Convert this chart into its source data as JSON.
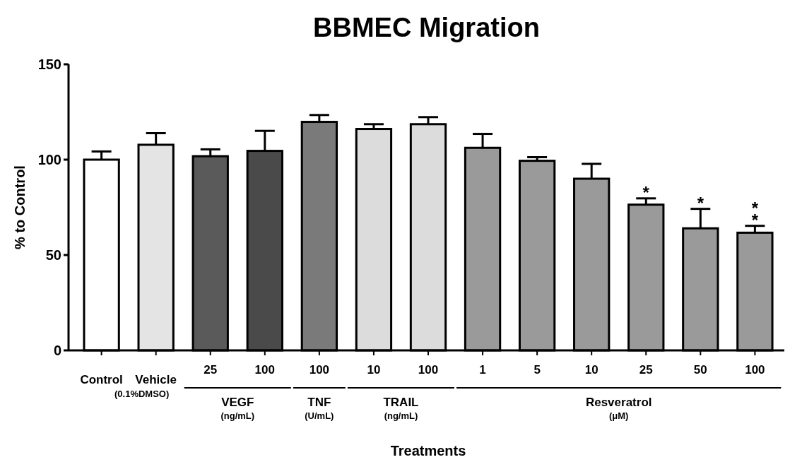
{
  "chart_data": {
    "type": "bar",
    "title": "BBMEC Migration",
    "xlabel": "Treatments",
    "ylabel": "% to Control",
    "categories": [
      "Control",
      "Vehicle",
      "25",
      "100",
      "100",
      "10",
      "100",
      "1",
      "5",
      "10",
      "25",
      "50",
      "100"
    ],
    "values": [
      100,
      107.8,
      101.8,
      104.6,
      119.8,
      116.1,
      118.6,
      106.2,
      99.4,
      90,
      76.4,
      64,
      61.7
    ],
    "errors": [
      [
        100,
        104.3
      ],
      [
        107.8,
        113.9
      ],
      [
        101.8,
        105.4
      ],
      [
        104.6,
        115.1
      ],
      [
        119.8,
        123.4
      ],
      [
        116.1,
        118.6
      ],
      [
        118.6,
        122.3
      ],
      [
        106.2,
        113.5
      ],
      [
        99.4,
        101.3
      ],
      [
        90,
        97.8
      ],
      [
        76.4,
        79.7
      ],
      [
        64,
        74.2
      ],
      [
        61.7,
        65.3
      ]
    ],
    "colors": [
      "#ffffff",
      "#e4e4e4",
      "#5a5a5a",
      "#4a4a4a",
      "#7a7a7a",
      "#dcdcdc",
      "#dcdcdc",
      "#9a9a9a",
      "#9a9a9a",
      "#9a9a9a",
      "#9a9a9a",
      "#9a9a9a",
      "#9a9a9a"
    ],
    "ylim": [
      0,
      150
    ],
    "yticks": [
      0,
      50,
      100,
      150
    ],
    "grid": false,
    "annotations": [
      "(0.1%DMSO)",
      "VEGF",
      "(ng/mL)",
      "TNF",
      "(U/mL)",
      "TRAIL",
      "(ng/mL)",
      "Resveratrol",
      "(μM)",
      "*",
      "*",
      "*",
      "*"
    ]
  }
}
